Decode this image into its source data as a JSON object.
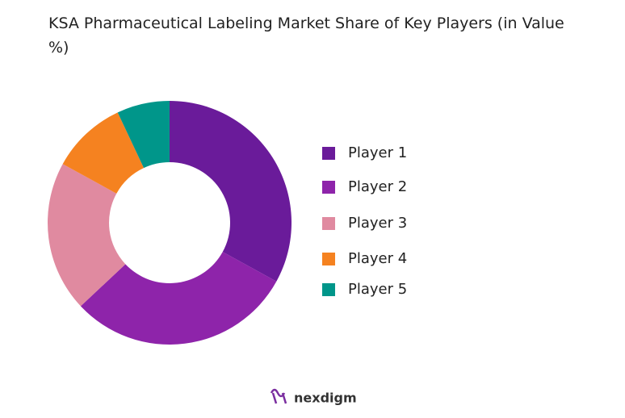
{
  "chart_data": {
    "type": "donut",
    "title": "KSA Pharmaceutical Labeling Market Share of Key Players (in Value %)",
    "categories": [
      "Player 1",
      "Player 2",
      "Player 3",
      "Player 4",
      "Player 5"
    ],
    "values": [
      33,
      30,
      20,
      10,
      7
    ],
    "colors": [
      "#6a1b9a",
      "#8e24aa",
      "#e08aa0",
      "#f58220",
      "#00968a"
    ],
    "legend": "right"
  },
  "logo_text": "nexdigm"
}
